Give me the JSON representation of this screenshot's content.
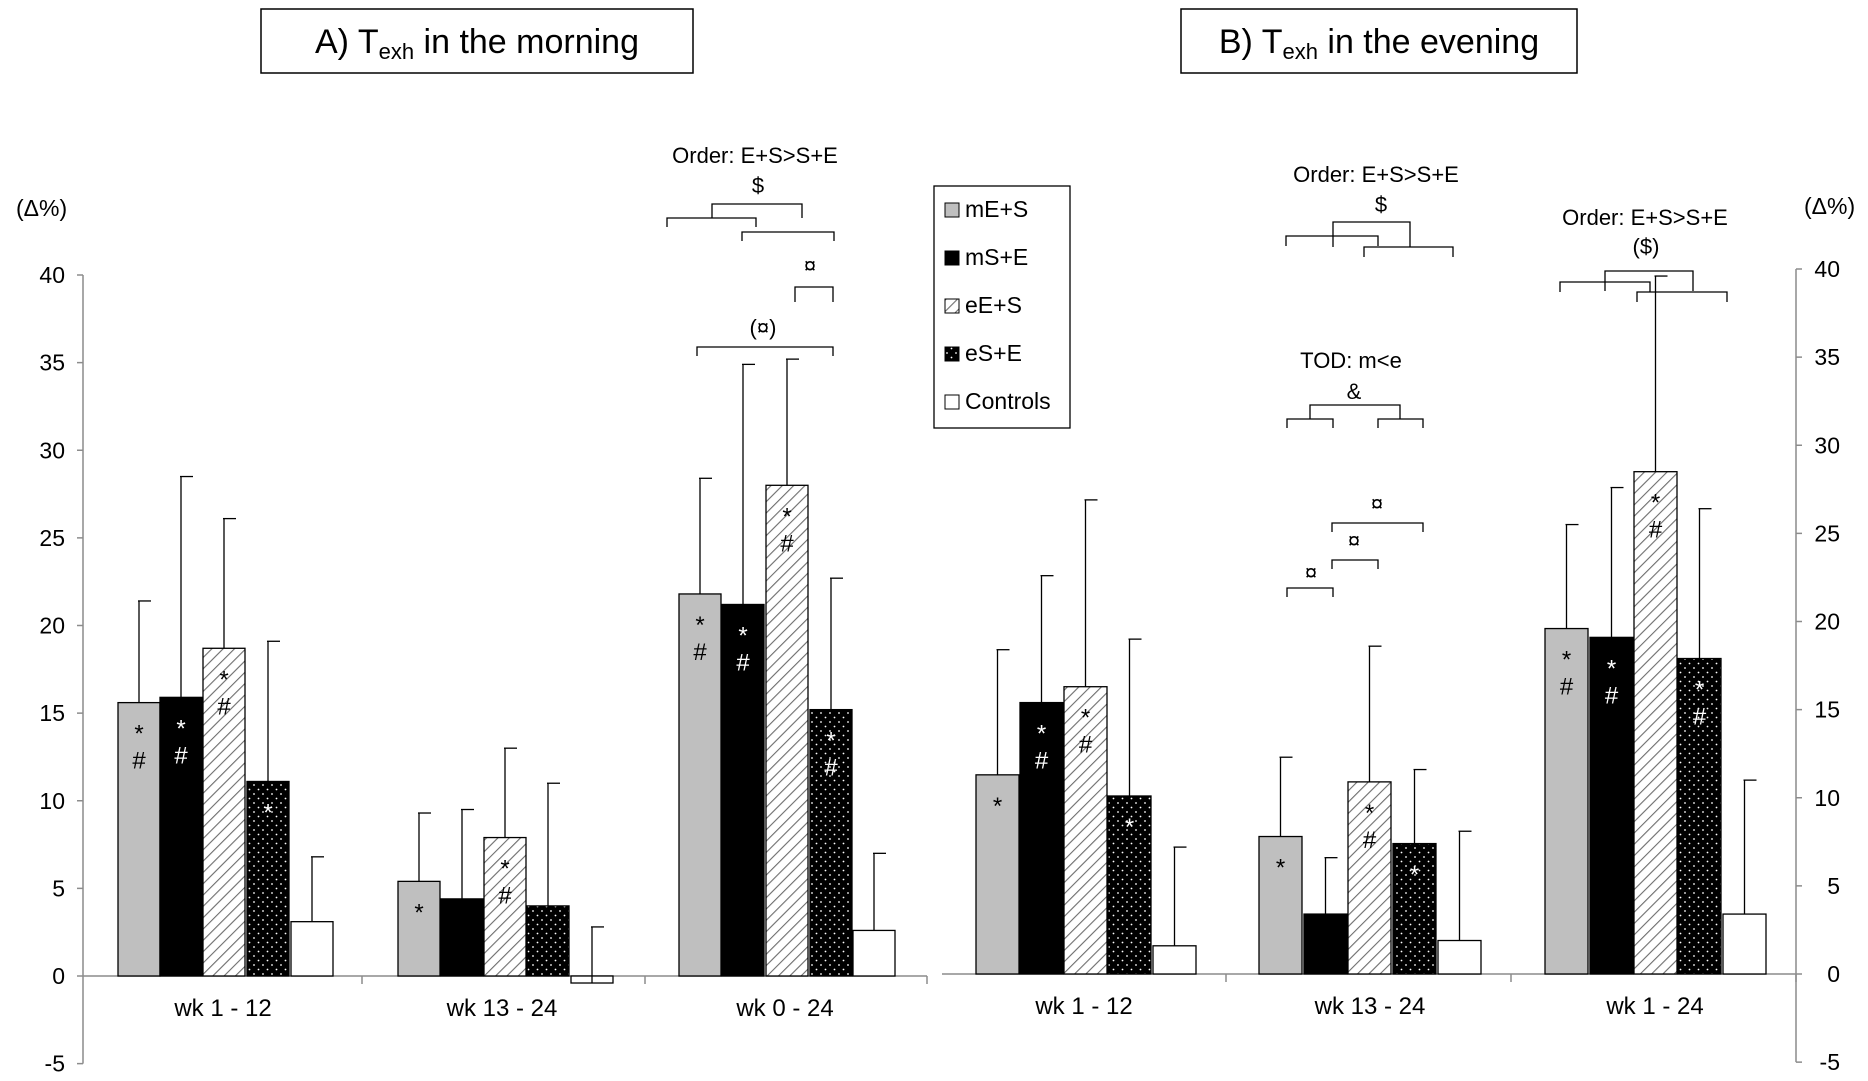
{
  "chart_data": [
    {
      "type": "bar",
      "title": "A) T",
      "title_sub": "exh",
      "title_rest": " in the morning",
      "ylabel": "(Δ%)",
      "ylim": [
        -5,
        40
      ],
      "yticks": [
        "-5",
        "0",
        "5",
        "10",
        "15",
        "20",
        "25",
        "30",
        "35",
        "40"
      ],
      "categories": [
        "wk 1 - 12",
        "wk 13 - 24",
        "wk 0 - 24"
      ],
      "series": [
        {
          "name": "mE+S",
          "values": [
            15.6,
            5.4,
            21.8
          ],
          "err": [
            5.8,
            3.9,
            6.6
          ],
          "marks": [
            "*#",
            "*",
            "*#"
          ]
        },
        {
          "name": "mS+E",
          "values": [
            15.9,
            4.4,
            21.2
          ],
          "err": [
            12.6,
            5.1,
            13.7
          ],
          "marks": [
            "*#",
            "",
            "*#"
          ]
        },
        {
          "name": "eE+S",
          "values": [
            18.7,
            7.9,
            28.0
          ],
          "err": [
            7.4,
            5.1,
            7.2
          ],
          "marks": [
            "*#",
            "*#",
            "*#"
          ]
        },
        {
          "name": "eS+E",
          "values": [
            11.1,
            4.0,
            15.2
          ],
          "err": [
            8.0,
            7.0,
            7.5
          ],
          "marks": [
            "*",
            "",
            "*#"
          ]
        },
        {
          "name": "Controls",
          "values": [
            3.1,
            -0.4,
            2.6
          ],
          "err": [
            3.7,
            3.2,
            4.4
          ],
          "marks": [
            "",
            "",
            ""
          ]
        }
      ],
      "annotations": [
        {
          "text": "Order: E+S>S+E",
          "symbol": "$"
        },
        {
          "text": "",
          "symbol": "¤"
        },
        {
          "text": "",
          "symbol": "(¤)"
        }
      ]
    },
    {
      "type": "bar",
      "title": "B) T",
      "title_sub": "exh",
      "title_rest": " in the evening",
      "ylabel": "(Δ%)",
      "ylim": [
        -5,
        40
      ],
      "yticks": [
        "-5",
        "0",
        "5",
        "10",
        "15",
        "20",
        "25",
        "30",
        "35",
        "40"
      ],
      "categories": [
        "wk 1 - 12",
        "wk 13 - 24",
        "wk 1 - 24"
      ],
      "series": [
        {
          "name": "mE+S",
          "values": [
            11.3,
            7.8,
            19.6
          ],
          "err": [
            7.1,
            4.5,
            5.9
          ],
          "marks": [
            "*",
            "*",
            "*#"
          ]
        },
        {
          "name": "mS+E",
          "values": [
            15.4,
            3.4,
            19.1
          ],
          "err": [
            7.2,
            3.2,
            8.5
          ],
          "marks": [
            "*#",
            "",
            "*#"
          ]
        },
        {
          "name": "eE+S",
          "values": [
            16.3,
            10.9,
            28.5
          ],
          "err": [
            10.6,
            7.7,
            11.1
          ],
          "marks": [
            "*#",
            "*#",
            "*#"
          ]
        },
        {
          "name": "eS+E",
          "values": [
            10.1,
            7.4,
            17.9
          ],
          "err": [
            8.9,
            4.2,
            8.5
          ],
          "marks": [
            "*",
            "*",
            "*#"
          ]
        },
        {
          "name": "Controls",
          "values": [
            1.6,
            1.9,
            3.4
          ],
          "err": [
            5.6,
            6.2,
            7.6
          ],
          "marks": [
            "",
            "",
            ""
          ]
        }
      ],
      "annotations": [
        {
          "text": "Order: E+S>S+E",
          "symbol": "$"
        },
        {
          "text": "TOD: m<e",
          "symbol": "&"
        },
        {
          "text": "",
          "symbol": "¤"
        },
        {
          "text": "",
          "symbol": "¤"
        },
        {
          "text": "",
          "symbol": "¤"
        },
        {
          "text": "Order: E+S>S+E",
          "symbol": "($)"
        }
      ]
    }
  ],
  "legend": {
    "placement": "top-center",
    "items": [
      "mE+S",
      "mS+E",
      "eE+S",
      "eS+E",
      "Controls"
    ]
  },
  "colors": {
    "mE+S": "#bfbfbf",
    "mS+E": "#000000",
    "eE+S": "#ffffff",
    "eS+E": "#000000",
    "Controls": "#ffffff"
  },
  "grid": false
}
